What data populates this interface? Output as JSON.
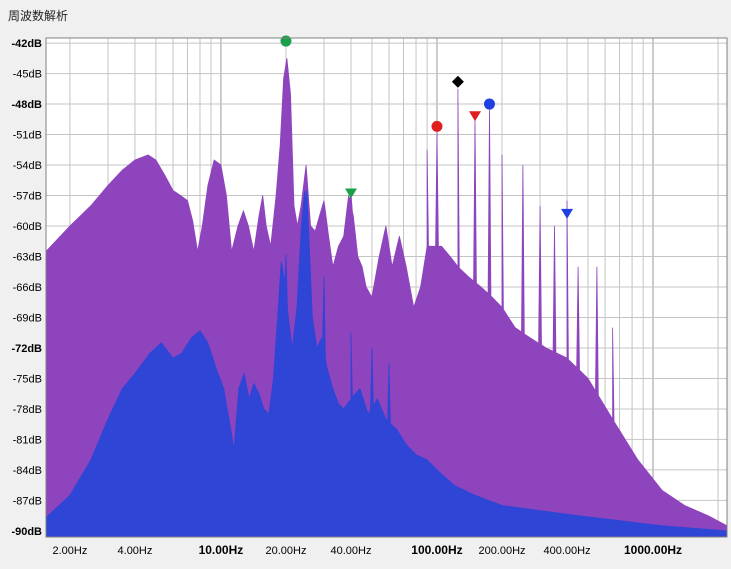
{
  "window": {
    "title": "周波数解析"
  },
  "chart_data": {
    "type": "area",
    "xscale": "log",
    "xlim": [
      1.55,
      2200
    ],
    "ylim": [
      -90.6,
      -41.5
    ],
    "y_ticks": [
      -42,
      -45,
      -48,
      -51,
      -54,
      -57,
      -60,
      -63,
      -66,
      -69,
      -72,
      -75,
      -78,
      -81,
      -84,
      -87,
      -90
    ],
    "y_tick_labels": [
      "-42dB",
      "-45dB",
      "-48dB",
      "-51dB",
      "-54dB",
      "-57dB",
      "-60dB",
      "-63dB",
      "-66dB",
      "-69dB",
      "-72dB",
      "-75dB",
      "-78dB",
      "-81dB",
      "-84dB",
      "-87dB",
      "-90dB"
    ],
    "y_bold_ticks": [
      "-42dB",
      "-48dB",
      "-72dB",
      "-90dB"
    ],
    "x_ticks": [
      2,
      4,
      10,
      20,
      40,
      100,
      200,
      400,
      1000
    ],
    "x_tick_labels": [
      "2.00Hz",
      "4.00Hz",
      "10.00Hz",
      "20.00Hz",
      "40.00Hz",
      "100.00Hz",
      "200.00Hz",
      "400.00Hz",
      "1000.00Hz"
    ],
    "x_bold_ticks": [
      "10.00Hz",
      "100.00Hz",
      "1000.00Hz"
    ],
    "grid": true,
    "series": [
      {
        "color": "#8e44bc",
        "points": [
          [
            1.55,
            -62.5
          ],
          [
            2.0,
            -60
          ],
          [
            2.5,
            -58
          ],
          [
            3.0,
            -56
          ],
          [
            3.5,
            -54.5
          ],
          [
            4.0,
            -53.5
          ],
          [
            4.6,
            -53.0
          ],
          [
            5.0,
            -53.5
          ],
          [
            5.5,
            -55
          ],
          [
            6.0,
            -56.5
          ],
          [
            6.5,
            -57.0
          ],
          [
            7.0,
            -57.5
          ],
          [
            7.4,
            -59.5
          ],
          [
            7.8,
            -62.5
          ],
          [
            8.2,
            -60
          ],
          [
            8.7,
            -56
          ],
          [
            9.3,
            -53.5
          ],
          [
            10.0,
            -54
          ],
          [
            10.6,
            -57
          ],
          [
            11.2,
            -62.5
          ],
          [
            12.0,
            -60
          ],
          [
            12.7,
            -58.5
          ],
          [
            13.4,
            -60
          ],
          [
            14.2,
            -62.5
          ],
          [
            15.0,
            -59
          ],
          [
            15.6,
            -57
          ],
          [
            16.2,
            -60
          ],
          [
            17.0,
            -62
          ],
          [
            18.0,
            -57
          ],
          [
            18.8,
            -52
          ],
          [
            19.5,
            -45.5
          ],
          [
            20.2,
            -43.5
          ],
          [
            21.0,
            -47
          ],
          [
            21.8,
            -58
          ],
          [
            22.6,
            -60
          ],
          [
            23.5,
            -58
          ],
          [
            24.8,
            -54
          ],
          [
            26.0,
            -60
          ],
          [
            27.3,
            -60.5
          ],
          [
            28.6,
            -59
          ],
          [
            30.0,
            -57.5
          ],
          [
            31.5,
            -61
          ],
          [
            33.0,
            -64
          ],
          [
            35.0,
            -62
          ],
          [
            37.0,
            -61
          ],
          [
            39.0,
            -57
          ],
          [
            41.0,
            -59
          ],
          [
            43.0,
            -63
          ],
          [
            45.0,
            -64
          ],
          [
            47.0,
            -66
          ],
          [
            50.0,
            -67
          ],
          [
            54.0,
            -63
          ],
          [
            58.0,
            -60
          ],
          [
            62.0,
            -64
          ],
          [
            67.0,
            -61
          ],
          [
            72.0,
            -64
          ],
          [
            78.0,
            -68
          ],
          [
            84.0,
            -66
          ],
          [
            90.0,
            -62
          ],
          [
            97.0,
            -62
          ],
          [
            105.0,
            -62
          ],
          [
            115.0,
            -63
          ],
          [
            125.0,
            -64
          ],
          [
            140.0,
            -65
          ],
          [
            160.0,
            -66
          ],
          [
            180.0,
            -67
          ],
          [
            200.0,
            -68
          ],
          [
            230.0,
            -70
          ],
          [
            270.0,
            -71
          ],
          [
            320.0,
            -72
          ],
          [
            400.0,
            -73
          ],
          [
            500.0,
            -75
          ],
          [
            650.0,
            -79
          ],
          [
            850.0,
            -83
          ],
          [
            1100.0,
            -86
          ],
          [
            1400.0,
            -87.5
          ],
          [
            1800.0,
            -88.5
          ],
          [
            2200.0,
            -89.5
          ]
        ],
        "peaks": [
          [
            40.0,
            -56.8
          ],
          [
            90.0,
            -52.5
          ],
          [
            100.0,
            -50.8
          ],
          [
            125.0,
            -46.5
          ],
          [
            150.0,
            -49.5
          ],
          [
            175.0,
            -48.5
          ],
          [
            200.0,
            -53
          ],
          [
            250.0,
            -54
          ],
          [
            300.0,
            -58
          ],
          [
            350.0,
            -60
          ],
          [
            400.0,
            -57.5
          ],
          [
            450.0,
            -64
          ],
          [
            550.0,
            -64
          ],
          [
            650.0,
            -70
          ]
        ]
      },
      {
        "color": "#2f45d6",
        "points": [
          [
            1.55,
            -88.7
          ],
          [
            2.0,
            -86.5
          ],
          [
            2.5,
            -83
          ],
          [
            3.0,
            -79
          ],
          [
            3.5,
            -76
          ],
          [
            4.0,
            -74.5
          ],
          [
            4.7,
            -72.5
          ],
          [
            5.3,
            -71.5
          ],
          [
            6.0,
            -73
          ],
          [
            6.6,
            -72.5
          ],
          [
            7.3,
            -71
          ],
          [
            8.0,
            -70.3
          ],
          [
            8.7,
            -71.5
          ],
          [
            9.5,
            -74
          ],
          [
            10.3,
            -76
          ],
          [
            11.0,
            -79.5
          ],
          [
            11.5,
            -82
          ],
          [
            12.1,
            -76
          ],
          [
            12.8,
            -74.5
          ],
          [
            13.5,
            -77
          ],
          [
            14.2,
            -75.5
          ],
          [
            15.0,
            -76.5
          ],
          [
            15.8,
            -78
          ],
          [
            16.7,
            -78.5
          ],
          [
            17.5,
            -75
          ],
          [
            18.3,
            -69
          ],
          [
            19.0,
            -63.5
          ],
          [
            19.8,
            -65.5
          ],
          [
            20.5,
            -69
          ],
          [
            21.4,
            -72
          ],
          [
            22.5,
            -68
          ],
          [
            23.5,
            -60.5
          ],
          [
            24.4,
            -56.5
          ],
          [
            25.4,
            -60
          ],
          [
            26.5,
            -69
          ],
          [
            27.8,
            -72
          ],
          [
            29.3,
            -71
          ],
          [
            31.0,
            -74
          ],
          [
            33.0,
            -76
          ],
          [
            35.0,
            -77.5
          ],
          [
            37.0,
            -78
          ],
          [
            40.0,
            -77
          ],
          [
            44.0,
            -76
          ],
          [
            48.0,
            -78.5
          ],
          [
            53.0,
            -77
          ],
          [
            58.0,
            -79
          ],
          [
            65.0,
            -80
          ],
          [
            72.0,
            -81.5
          ],
          [
            80.0,
            -82.5
          ],
          [
            90.0,
            -83
          ],
          [
            100.0,
            -84
          ],
          [
            120.0,
            -85.5
          ],
          [
            150.0,
            -86.5
          ],
          [
            200.0,
            -87.5
          ],
          [
            300.0,
            -88
          ],
          [
            450.0,
            -88.5
          ],
          [
            700.0,
            -89
          ],
          [
            1100.0,
            -89.5
          ],
          [
            2200.0,
            -90
          ]
        ],
        "peaks": [
          [
            20.0,
            -62.8
          ],
          [
            25.0,
            -56.5
          ],
          [
            30.0,
            -65
          ],
          [
            40.0,
            -70.5
          ],
          [
            50.0,
            -72
          ],
          [
            60.0,
            -73.5
          ]
        ]
      }
    ],
    "markers": [
      {
        "shape": "circle",
        "color": "#1aa04a",
        "x": 20.0,
        "y": -41.8
      },
      {
        "shape": "triangle",
        "color": "#1aa04a",
        "x": 40.0,
        "y": -56.8
      },
      {
        "shape": "circle",
        "color": "#e02020",
        "x": 100.0,
        "y": -50.2
      },
      {
        "shape": "diamond",
        "color": "#000000",
        "x": 125.0,
        "y": -45.8
      },
      {
        "shape": "triangle",
        "color": "#e02020",
        "x": 150.0,
        "y": -49.2
      },
      {
        "shape": "circle",
        "color": "#1f3fe0",
        "x": 175.0,
        "y": -48.0
      },
      {
        "shape": "triangle",
        "color": "#1f3fe0",
        "x": 400.0,
        "y": -58.8
      }
    ]
  }
}
